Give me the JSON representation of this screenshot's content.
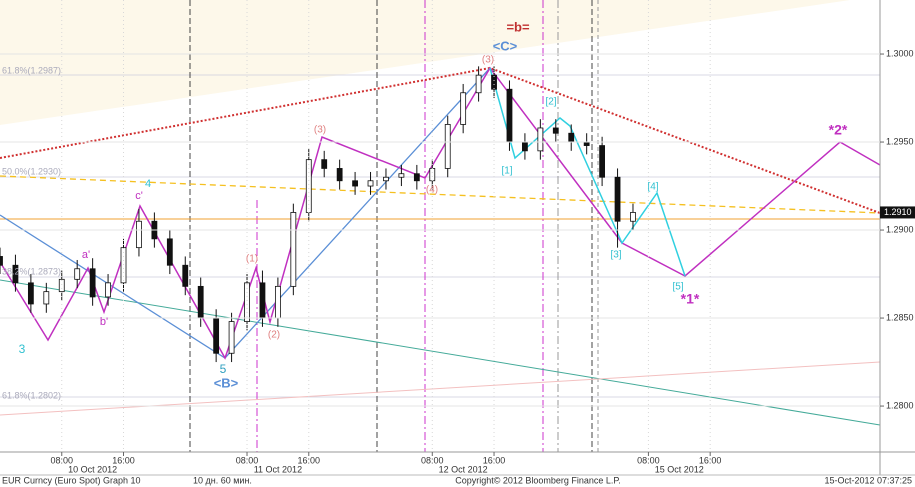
{
  "chart_data": {
    "type": "candlestick",
    "x": [
      0,
      2,
      4,
      6,
      8,
      10,
      12,
      14,
      16,
      18,
      20,
      22,
      24,
      26,
      28,
      30,
      32,
      34,
      36,
      38,
      40,
      42,
      44,
      46,
      48,
      50,
      52,
      54,
      56,
      58,
      60,
      62,
      64,
      66,
      68,
      70,
      72,
      74,
      76,
      78,
      80,
      82
    ],
    "open": [
      1.2885,
      1.288,
      1.287,
      1.2858,
      1.2865,
      1.2872,
      1.2878,
      1.2862,
      1.287,
      1.289,
      1.2905,
      1.2895,
      1.288,
      1.2868,
      1.285,
      1.283,
      1.2848,
      1.287,
      1.285,
      1.2868,
      1.291,
      1.294,
      1.2935,
      1.2928,
      1.2925,
      1.2928,
      1.293,
      1.2932,
      1.2928,
      1.2935,
      1.296,
      1.2978,
      1.2988,
      1.298,
      1.295,
      1.2945,
      1.2958,
      1.2955,
      1.295,
      1.2948,
      1.293,
      1.2905
    ],
    "high": [
      1.289,
      1.2886,
      1.2875,
      1.287,
      1.2877,
      1.2883,
      1.2884,
      1.2875,
      1.2895,
      1.2912,
      1.291,
      1.29,
      1.2885,
      1.2873,
      1.2855,
      1.2853,
      1.2875,
      1.2877,
      1.2873,
      1.2915,
      1.2946,
      1.2945,
      1.294,
      1.2933,
      1.2933,
      1.2935,
      1.2937,
      1.2937,
      1.294,
      1.2965,
      1.2983,
      1.2993,
      1.2993,
      1.2985,
      1.2955,
      1.2963,
      1.2963,
      1.296,
      1.2955,
      1.2953,
      1.2935,
      1.2915
    ],
    "low": [
      1.2875,
      1.2865,
      1.2853,
      1.2853,
      1.286,
      1.2867,
      1.2857,
      1.2857,
      1.2865,
      1.2885,
      1.289,
      1.2875,
      1.2863,
      1.2845,
      1.2825,
      1.2825,
      1.2843,
      1.2845,
      1.2845,
      1.2863,
      1.2905,
      1.293,
      1.2923,
      1.292,
      1.292,
      1.2923,
      1.2925,
      1.2923,
      1.2923,
      1.293,
      1.2955,
      1.2973,
      1.2975,
      1.2945,
      1.294,
      1.294,
      1.295,
      1.2945,
      1.2943,
      1.2925,
      1.289,
      1.29
    ],
    "close": [
      1.288,
      1.287,
      1.2858,
      1.2865,
      1.2872,
      1.2878,
      1.2862,
      1.287,
      1.289,
      1.2905,
      1.2895,
      1.288,
      1.2868,
      1.285,
      1.283,
      1.2848,
      1.287,
      1.285,
      1.2868,
      1.291,
      1.294,
      1.2935,
      1.2928,
      1.2925,
      1.2928,
      1.293,
      1.2932,
      1.2928,
      1.2935,
      1.296,
      1.2978,
      1.2988,
      1.298,
      1.295,
      1.2945,
      1.2958,
      1.2955,
      1.295,
      1.2948,
      1.293,
      1.2905,
      1.291
    ],
    "xlim": [
      0,
      114
    ],
    "xticks": [
      {
        "value": 8,
        "label": "08:00"
      },
      {
        "value": 16,
        "label": "16:00"
      },
      {
        "value": 32,
        "label": "08:00"
      },
      {
        "value": 40,
        "label": "16:00"
      },
      {
        "value": 56,
        "label": "08:00"
      },
      {
        "value": 64,
        "label": "16:00"
      },
      {
        "value": 84,
        "label": "08:00"
      },
      {
        "value": 92,
        "label": "16:00"
      }
    ],
    "date_labels": [
      {
        "value": 12,
        "label": "10 Oct 2012"
      },
      {
        "value": 36,
        "label": "11 Oct 2012"
      },
      {
        "value": 60,
        "label": "12 Oct 2012"
      },
      {
        "value": 88,
        "label": "15 Oct 2012"
      }
    ],
    "ylim": [
      1.27739,
      1.30307
    ],
    "yticks": [
      {
        "value": 1.28,
        "label": "1.2800"
      },
      {
        "value": 1.285,
        "label": "1.2850"
      },
      {
        "value": 1.29,
        "label": "1.2900"
      },
      {
        "value": 1.295,
        "label": "1.2950"
      },
      {
        "value": 1.3,
        "label": "1.3000"
      }
    ],
    "last_price": {
      "value": 1.291,
      "label": "1.2910"
    },
    "annotations": [
      "=b=",
      "<C>",
      "(3)",
      "[2]",
      "[1]",
      "(3)",
      "(4)",
      "4",
      "c'",
      "a'",
      "b'",
      "3",
      "5",
      "<B>",
      "(1)",
      "(2)",
      "[3]",
      "[4]",
      "[5]",
      "*1*",
      "*2*",
      "61.8%(1.2987)",
      "50.0%(1.2930)",
      "38.2%(1.2873)",
      "61.8%(1.2802)"
    ],
    "footer": {
      "security": "EUR Curncy (Euro Spot) Graph 10",
      "period": "10 дн. 60 мин.",
      "copyright": "Copyright© 2012 Bloomberg Finance L.P.",
      "timestamp": "15-Oct-2012 07:37:25"
    }
  }
}
